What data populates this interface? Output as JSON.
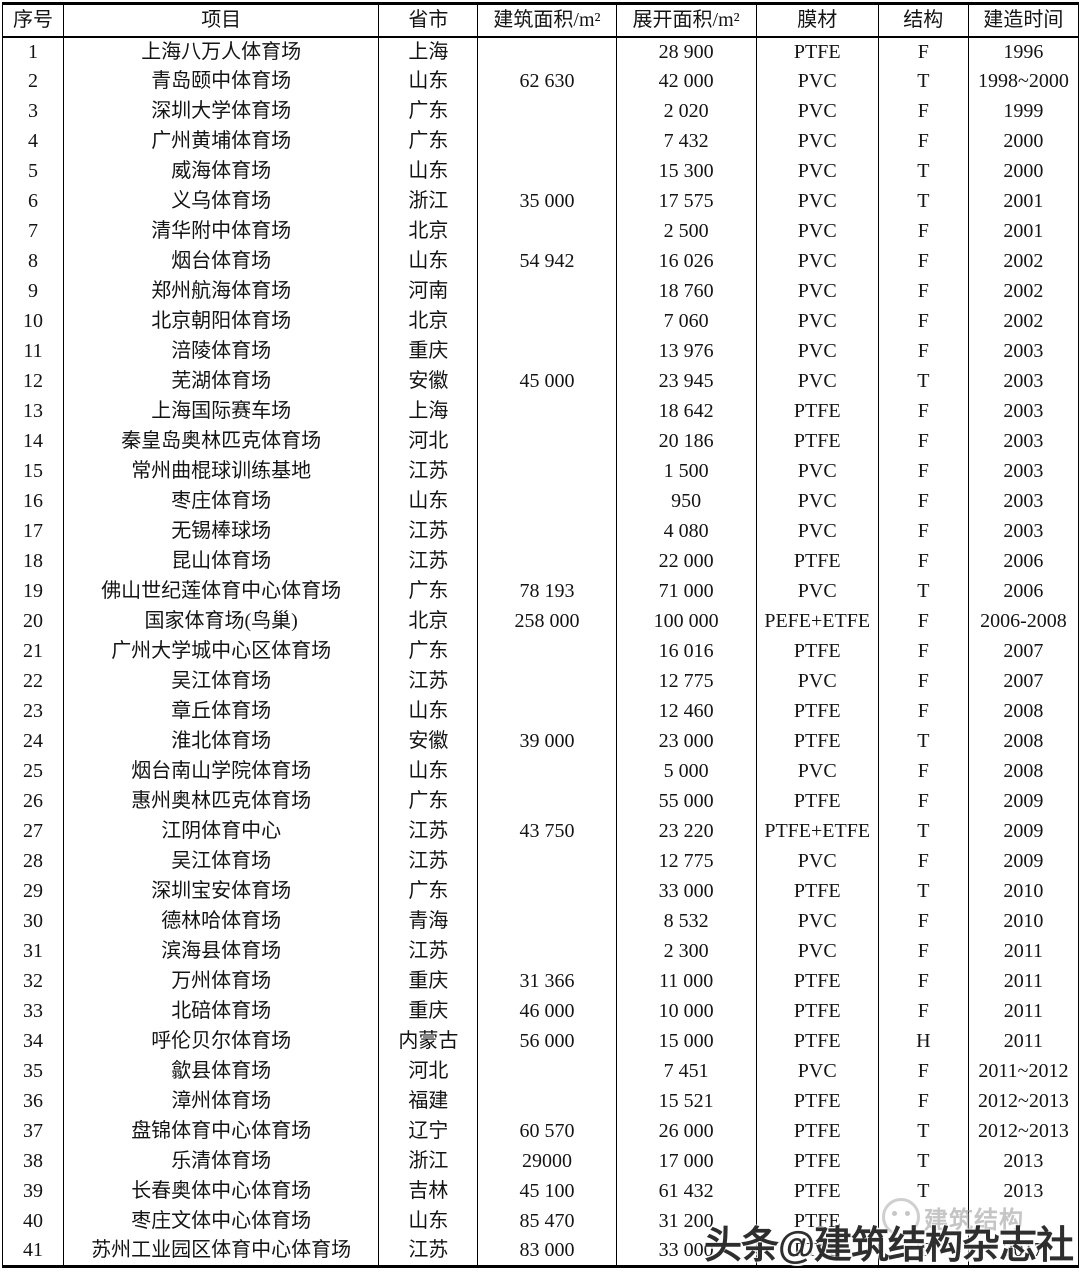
{
  "table": {
    "columns": [
      "序号",
      "项目",
      "省市",
      "建筑面积/m²",
      "展开面积/m²",
      "膜材",
      "结构",
      "建造时间"
    ],
    "rows": [
      [
        "1",
        "上海八万人体育场",
        "上海",
        "",
        "28 900",
        "PTFE",
        "F",
        "1996"
      ],
      [
        "2",
        "青岛颐中体育场",
        "山东",
        "62 630",
        "42 000",
        "PVC",
        "T",
        "1998~2000"
      ],
      [
        "3",
        "深圳大学体育场",
        "广东",
        "",
        "2 020",
        "PVC",
        "F",
        "1999"
      ],
      [
        "4",
        "广州黄埔体育场",
        "广东",
        "",
        "7 432",
        "PVC",
        "F",
        "2000"
      ],
      [
        "5",
        "威海体育场",
        "山东",
        "",
        "15 300",
        "PVC",
        "T",
        "2000"
      ],
      [
        "6",
        "义乌体育场",
        "浙江",
        "35 000",
        "17 575",
        "PVC",
        "T",
        "2001"
      ],
      [
        "7",
        "清华附中体育场",
        "北京",
        "",
        "2 500",
        "PVC",
        "F",
        "2001"
      ],
      [
        "8",
        "烟台体育场",
        "山东",
        "54 942",
        "16 026",
        "PVC",
        "F",
        "2002"
      ],
      [
        "9",
        "郑州航海体育场",
        "河南",
        "",
        "18 760",
        "PVC",
        "F",
        "2002"
      ],
      [
        "10",
        "北京朝阳体育场",
        "北京",
        "",
        "7 060",
        "PVC",
        "F",
        "2002"
      ],
      [
        "11",
        "涪陵体育场",
        "重庆",
        "",
        "13 976",
        "PVC",
        "F",
        "2003"
      ],
      [
        "12",
        "芜湖体育场",
        "安徽",
        "45 000",
        "23 945",
        "PVC",
        "T",
        "2003"
      ],
      [
        "13",
        "上海国际赛车场",
        "上海",
        "",
        "18 642",
        "PTFE",
        "F",
        "2003"
      ],
      [
        "14",
        "秦皇岛奥林匹克体育场",
        "河北",
        "",
        "20 186",
        "PTFE",
        "F",
        "2003"
      ],
      [
        "15",
        "常州曲棍球训练基地",
        "江苏",
        "",
        "1 500",
        "PVC",
        "F",
        "2003"
      ],
      [
        "16",
        "枣庄体育场",
        "山东",
        "",
        "950",
        "PVC",
        "F",
        "2003"
      ],
      [
        "17",
        "无锡棒球场",
        "江苏",
        "",
        "4 080",
        "PVC",
        "F",
        "2003"
      ],
      [
        "18",
        "昆山体育场",
        "江苏",
        "",
        "22 000",
        "PTFE",
        "F",
        "2006"
      ],
      [
        "19",
        "佛山世纪莲体育中心体育场",
        "广东",
        "78 193",
        "71 000",
        "PVC",
        "T",
        "2006"
      ],
      [
        "20",
        "国家体育场(鸟巢)",
        "北京",
        "258 000",
        "100 000",
        "PEFE+ETFE",
        "F",
        "2006-2008"
      ],
      [
        "21",
        "广州大学城中心区体育场",
        "广东",
        "",
        "16 016",
        "PTFE",
        "F",
        "2007"
      ],
      [
        "22",
        "吴江体育场",
        "江苏",
        "",
        "12 775",
        "PVC",
        "F",
        "2007"
      ],
      [
        "23",
        "章丘体育场",
        "山东",
        "",
        "12 460",
        "PTFE",
        "F",
        "2008"
      ],
      [
        "24",
        "淮北体育场",
        "安徽",
        "39 000",
        "23 000",
        "PTFE",
        "T",
        "2008"
      ],
      [
        "25",
        "烟台南山学院体育场",
        "山东",
        "",
        "5 000",
        "PVC",
        "F",
        "2008"
      ],
      [
        "26",
        "惠州奥林匹克体育场",
        "广东",
        "",
        "55 000",
        "PTFE",
        "F",
        "2009"
      ],
      [
        "27",
        "江阴体育中心",
        "江苏",
        "43 750",
        "23 220",
        "PTFE+ETFE",
        "T",
        "2009"
      ],
      [
        "28",
        "吴江体育场",
        "江苏",
        "",
        "12 775",
        "PVC",
        "F",
        "2009"
      ],
      [
        "29",
        "深圳宝安体育场",
        "广东",
        "",
        "33 000",
        "PTFE",
        "T",
        "2010"
      ],
      [
        "30",
        "德林哈体育场",
        "青海",
        "",
        "8 532",
        "PVC",
        "F",
        "2010"
      ],
      [
        "31",
        "滨海县体育场",
        "江苏",
        "",
        "2 300",
        "PVC",
        "F",
        "2011"
      ],
      [
        "32",
        "万州体育场",
        "重庆",
        "31 366",
        "11 000",
        "PTFE",
        "F",
        "2011"
      ],
      [
        "33",
        "北碚体育场",
        "重庆",
        "46 000",
        "10 000",
        "PTFE",
        "F",
        "2011"
      ],
      [
        "34",
        "呼伦贝尔体育场",
        "内蒙古",
        "56 000",
        "15 000",
        "PTFE",
        "H",
        "2011"
      ],
      [
        "35",
        "歙县体育场",
        "河北",
        "",
        "7 451",
        "PVC",
        "F",
        "2011~2012"
      ],
      [
        "36",
        "漳州体育场",
        "福建",
        "",
        "15 521",
        "PTFE",
        "F",
        "2012~2013"
      ],
      [
        "37",
        "盘锦体育中心体育场",
        "辽宁",
        "60 570",
        "26 000",
        "PTFE",
        "T",
        "2012~2013"
      ],
      [
        "38",
        "乐清体育场",
        "浙江",
        "29000",
        "17 000",
        "PTFE",
        "T",
        "2013"
      ],
      [
        "39",
        "长春奥体中心体育场",
        "吉林",
        "45 100",
        "61 432",
        "PTFE",
        "T",
        "2013"
      ],
      [
        "40",
        "枣庄文体中心体育场",
        "山东",
        "85 470",
        "31 200",
        "PTFE",
        "",
        ""
      ],
      [
        "41",
        "苏州工业园区体育中心体育场",
        "江苏",
        "83 000",
        "33 000",
        "PTFE",
        "T",
        "2017"
      ]
    ]
  },
  "watermark": {
    "main_text": "头条@建筑结构杂志社",
    "ghost_text": "建筑结构",
    "logo": "smiley-circle-logo"
  },
  "colors": {
    "text": "#141414",
    "border": "#000000",
    "watermark": "#1c1c1c",
    "watermark_ghost": "#969696",
    "background": "#ffffff"
  }
}
